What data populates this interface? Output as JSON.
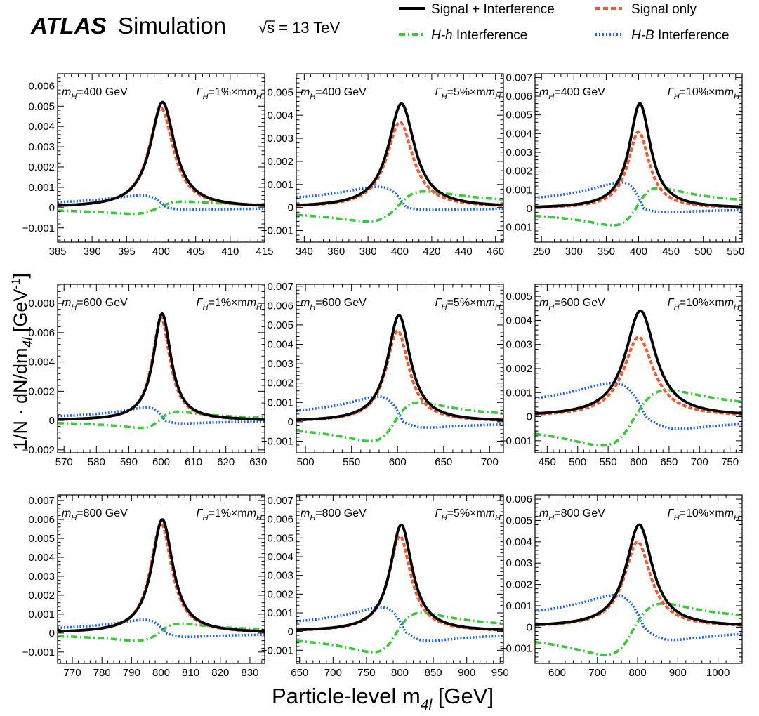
{
  "header": {
    "experiment": "ATLAS",
    "status": "Simulation",
    "energy_root": "√",
    "energy_text": "s = 13 TeV"
  },
  "legend": {
    "placement": "top-right",
    "entries": [
      {
        "key": "total",
        "label": "Signal + Interference",
        "color": "#000000",
        "style": "solid"
      },
      {
        "key": "signal",
        "label": "Signal only",
        "color": "#f05a32",
        "style": "dashed"
      },
      {
        "key": "hh",
        "label_italic": "H-h",
        "label_rest": " Interference",
        "color": "#3cc83c",
        "style": "dashdot"
      },
      {
        "key": "hb",
        "label_italic": "H-B",
        "label_rest": " Interference",
        "color": "#1e64e6",
        "style": "dotted"
      }
    ]
  },
  "axes": {
    "ylabel": "1/N · dN/dm",
    "ylabel_sub": "4l",
    "ylabel_unit_pre": " [GeV",
    "ylabel_unit_sup": "-1",
    "ylabel_unit_post": "]",
    "xlabel": "Particle-level m",
    "xlabel_sub": "4l",
    "xlabel_unit": " [GeV]"
  },
  "chart_data": [
    {
      "type": "line",
      "mass_label": "=400 GeV",
      "width_label": "=1%×m",
      "m": 400,
      "width_pct": 1,
      "xlim": [
        385,
        415
      ],
      "ylim": [
        -0.0017,
        0.0066
      ],
      "xticks": [
        385,
        390,
        395,
        400,
        405,
        410,
        415
      ],
      "yticks": [
        {
          "v": -0.001,
          "l": "−0.001"
        },
        {
          "v": 0,
          "l": "0"
        },
        {
          "v": 0.001,
          "l": "0.001"
        },
        {
          "v": 0.002,
          "l": "0.002"
        },
        {
          "v": 0.003,
          "l": "0.003"
        },
        {
          "v": 0.004,
          "l": "0.004"
        },
        {
          "v": 0.005,
          "l": "0.005"
        },
        {
          "v": 0.006,
          "l": "0.006"
        }
      ],
      "series_peaks": {
        "total": 0.0052,
        "signal": 0.0049,
        "hh_min": -0.0003,
        "hh_max": 0.0003,
        "hb_max": 0.0006,
        "hb_min": -0.0001
      },
      "grid": false
    },
    {
      "type": "line",
      "mass_label": "=400 GeV",
      "width_label": "=5%×m",
      "m": 400,
      "width_pct": 5,
      "xlim": [
        335,
        465
      ],
      "ylim": [
        -0.0015,
        0.0058
      ],
      "xticks": [
        340,
        360,
        380,
        400,
        420,
        440,
        460
      ],
      "yticks": [
        {
          "v": -0.001,
          "l": "−0.001"
        },
        {
          "v": 0,
          "l": "0"
        },
        {
          "v": 0.001,
          "l": "0.001"
        },
        {
          "v": 0.002,
          "l": "0.002"
        },
        {
          "v": 0.003,
          "l": "0.003"
        },
        {
          "v": 0.004,
          "l": "0.004"
        },
        {
          "v": 0.005,
          "l": "0.005"
        }
      ],
      "series_peaks": {
        "total": 0.0045,
        "signal": 0.0037,
        "hh_min": -0.0006,
        "hh_max": 0.0007,
        "hb_max": 0.0009,
        "hb_min": -0.0001
      },
      "grid": false
    },
    {
      "type": "line",
      "mass_label": "=400 GeV",
      "width_label": "=10%×m",
      "m": 400,
      "width_pct": 10,
      "xlim": [
        240,
        560
      ],
      "ylim": [
        -0.0018,
        0.0072
      ],
      "xticks": [
        250,
        300,
        350,
        400,
        450,
        500,
        550
      ],
      "yticks": [
        {
          "v": -0.001,
          "l": "−0.001"
        },
        {
          "v": 0,
          "l": "0"
        },
        {
          "v": 0.001,
          "l": "0.001"
        },
        {
          "v": 0.002,
          "l": "0.002"
        },
        {
          "v": 0.003,
          "l": "0.003"
        },
        {
          "v": 0.004,
          "l": "0.004"
        },
        {
          "v": 0.005,
          "l": "0.005"
        },
        {
          "v": 0.006,
          "l": "0.006"
        },
        {
          "v": 0.007,
          "l": "0.007"
        }
      ],
      "series_peaks": {
        "total": 0.0056,
        "signal": 0.0041,
        "hh_min": -0.0009,
        "hh_max": 0.0011,
        "hb_max": 0.0014,
        "hb_min": -0.0002
      },
      "grid": false
    },
    {
      "type": "line",
      "mass_label": "=600 GeV",
      "width_label": "=1%×m",
      "m": 600,
      "width_pct": 1,
      "xlim": [
        568,
        632
      ],
      "ylim": [
        -0.0022,
        0.0093
      ],
      "xticks": [
        570,
        580,
        590,
        600,
        610,
        620,
        630
      ],
      "yticks": [
        {
          "v": -0.002,
          "l": "−0.002"
        },
        {
          "v": 0,
          "l": "0"
        },
        {
          "v": 0.002,
          "l": "0.002"
        },
        {
          "v": 0.004,
          "l": "0.004"
        },
        {
          "v": 0.006,
          "l": "0.006"
        },
        {
          "v": 0.008,
          "l": "0.008"
        }
      ],
      "series_peaks": {
        "total": 0.0073,
        "signal": 0.007,
        "hh_min": -0.0005,
        "hh_max": 0.0006,
        "hb_max": 0.0009,
        "hb_min": -0.0002
      },
      "grid": false
    },
    {
      "type": "line",
      "mass_label": "=600 GeV",
      "width_label": "=5%×m",
      "m": 600,
      "width_pct": 5,
      "xlim": [
        490,
        715
      ],
      "ylim": [
        -0.0016,
        0.0071
      ],
      "xticks": [
        500,
        550,
        600,
        650,
        700
      ],
      "yticks": [
        {
          "v": -0.001,
          "l": "−0.001"
        },
        {
          "v": 0,
          "l": "0"
        },
        {
          "v": 0.001,
          "l": "0.001"
        },
        {
          "v": 0.002,
          "l": "0.002"
        },
        {
          "v": 0.003,
          "l": "0.003"
        },
        {
          "v": 0.004,
          "l": "0.004"
        },
        {
          "v": 0.005,
          "l": "0.005"
        },
        {
          "v": 0.006,
          "l": "0.006"
        },
        {
          "v": 0.007,
          "l": "0.007"
        }
      ],
      "series_peaks": {
        "total": 0.0055,
        "signal": 0.0047,
        "hh_min": -0.001,
        "hh_max": 0.001,
        "hb_max": 0.0013,
        "hb_min": -0.0003
      },
      "grid": false
    },
    {
      "type": "line",
      "mass_label": "=600 GeV",
      "width_label": "=10%×m",
      "m": 600,
      "width_pct": 10,
      "xlim": [
        430,
        770
      ],
      "ylim": [
        -0.0015,
        0.0055
      ],
      "xticks": [
        450,
        500,
        550,
        600,
        650,
        700,
        750
      ],
      "yticks": [
        {
          "v": -0.001,
          "l": "−0.001"
        },
        {
          "v": 0,
          "l": "0"
        },
        {
          "v": 0.001,
          "l": "0.001"
        },
        {
          "v": 0.002,
          "l": "0.002"
        },
        {
          "v": 0.003,
          "l": "0.003"
        },
        {
          "v": 0.004,
          "l": "0.004"
        },
        {
          "v": 0.005,
          "l": "0.005"
        }
      ],
      "series_peaks": {
        "total": 0.0044,
        "signal": 0.0033,
        "hh_min": -0.0012,
        "hh_max": 0.0011,
        "hb_max": 0.0014,
        "hb_min": -0.0005
      },
      "grid": false
    },
    {
      "type": "line",
      "mass_label": "=800 GeV",
      "width_label": "=1%×m",
      "m": 800,
      "width_pct": 1,
      "xlim": [
        765,
        835
      ],
      "ylim": [
        -0.0016,
        0.0073
      ],
      "xticks": [
        770,
        780,
        790,
        800,
        810,
        820,
        830
      ],
      "yticks": [
        {
          "v": -0.001,
          "l": "−0.001"
        },
        {
          "v": 0,
          "l": "0"
        },
        {
          "v": 0.001,
          "l": "0.001"
        },
        {
          "v": 0.002,
          "l": "0.002"
        },
        {
          "v": 0.003,
          "l": "0.003"
        },
        {
          "v": 0.004,
          "l": "0.004"
        },
        {
          "v": 0.005,
          "l": "0.005"
        },
        {
          "v": 0.006,
          "l": "0.006"
        },
        {
          "v": 0.007,
          "l": "0.007"
        }
      ],
      "series_peaks": {
        "total": 0.006,
        "signal": 0.0058,
        "hh_min": -0.0004,
        "hh_max": 0.0005,
        "hb_max": 0.0007,
        "hb_min": -0.0002
      },
      "grid": false
    },
    {
      "type": "line",
      "mass_label": "=800 GeV",
      "width_label": "=5%×m",
      "m": 800,
      "width_pct": 5,
      "xlim": [
        645,
        955
      ],
      "ylim": [
        -0.0017,
        0.0073
      ],
      "xticks": [
        650,
        700,
        750,
        800,
        850,
        900,
        950
      ],
      "yticks": [
        {
          "v": -0.001,
          "l": "−0.001"
        },
        {
          "v": 0,
          "l": "0"
        },
        {
          "v": 0.001,
          "l": "0.001"
        },
        {
          "v": 0.002,
          "l": "0.002"
        },
        {
          "v": 0.003,
          "l": "0.003"
        },
        {
          "v": 0.004,
          "l": "0.004"
        },
        {
          "v": 0.005,
          "l": "0.005"
        },
        {
          "v": 0.006,
          "l": "0.006"
        },
        {
          "v": 0.007,
          "l": "0.007"
        }
      ],
      "series_peaks": {
        "total": 0.0057,
        "signal": 0.0051,
        "hh_min": -0.0011,
        "hh_max": 0.001,
        "hb_max": 0.0013,
        "hb_min": -0.0005
      },
      "grid": false
    },
    {
      "type": "line",
      "mass_label": "=800 GeV",
      "width_label": "=10%×m",
      "m": 800,
      "width_pct": 10,
      "xlim": [
        545,
        1060
      ],
      "ylim": [
        -0.0017,
        0.0062
      ],
      "xticks": [
        600,
        700,
        800,
        900,
        1000
      ],
      "yticks": [
        {
          "v": -0.001,
          "l": "−0.001"
        },
        {
          "v": 0,
          "l": "0"
        },
        {
          "v": 0.001,
          "l": "0.001"
        },
        {
          "v": 0.002,
          "l": "0.002"
        },
        {
          "v": 0.003,
          "l": "0.003"
        },
        {
          "v": 0.004,
          "l": "0.004"
        },
        {
          "v": 0.005,
          "l": "0.005"
        },
        {
          "v": 0.006,
          "l": "0.006"
        }
      ],
      "series_peaks": {
        "total": 0.0048,
        "signal": 0.004,
        "hh_min": -0.0013,
        "hh_max": 0.0011,
        "hb_max": 0.0015,
        "hb_min": -0.0006
      },
      "grid": false
    }
  ]
}
